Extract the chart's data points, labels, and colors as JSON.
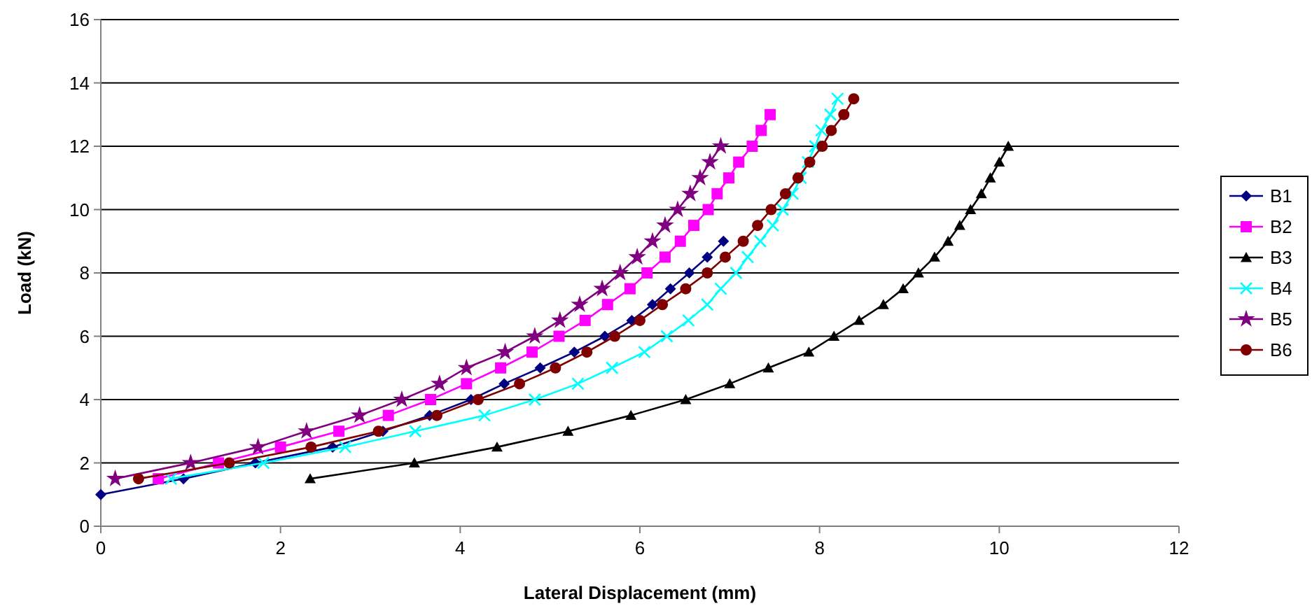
{
  "chart_data": {
    "type": "line",
    "xlabel": "Lateral Displacement (mm)",
    "ylabel": "Load (kN)",
    "xlim": [
      0,
      12
    ],
    "xticks": [
      0,
      2,
      4,
      6,
      8,
      10,
      12
    ],
    "ylim": [
      0,
      16
    ],
    "yticks": [
      0,
      2,
      4,
      6,
      8,
      10,
      12,
      14,
      16
    ],
    "grid": "y",
    "legend": "right",
    "series": [
      {
        "name": "B1",
        "color": "#000080",
        "marker": "diamond",
        "x": [
          0,
          0.92,
          1.72,
          2.58,
          3.14,
          3.66,
          4.12,
          4.49,
          4.89,
          5.27,
          5.61,
          5.91,
          6.14,
          6.34,
          6.55,
          6.75,
          6.93
        ],
        "values": [
          1,
          1.5,
          2,
          2.5,
          3,
          3.5,
          4,
          4.5,
          5,
          5.5,
          6,
          6.5,
          7,
          7.5,
          8,
          8.5,
          9
        ]
      },
      {
        "name": "B2",
        "color": "#ff00ff",
        "marker": "square",
        "x": [
          0.64,
          1.31,
          2.0,
          2.65,
          3.2,
          3.67,
          4.07,
          4.45,
          4.8,
          5.1,
          5.39,
          5.64,
          5.89,
          6.08,
          6.28,
          6.45,
          6.6,
          6.76,
          6.86,
          6.99,
          7.1,
          7.25,
          7.35,
          7.45
        ],
        "values": [
          1.5,
          2,
          2.5,
          3,
          3.5,
          4,
          4.5,
          5,
          5.5,
          6,
          6.5,
          7,
          7.5,
          8,
          8.5,
          9,
          9.5,
          10,
          10.5,
          11,
          11.5,
          12,
          12.5,
          13
        ]
      },
      {
        "name": "B3",
        "color": "#000000",
        "marker": "triangle",
        "x": [
          2.33,
          3.49,
          4.41,
          5.2,
          5.9,
          6.51,
          7.0,
          7.43,
          7.88,
          8.16,
          8.44,
          8.71,
          8.93,
          9.1,
          9.28,
          9.43,
          9.56,
          9.68,
          9.8,
          9.9,
          10.0,
          10.1
        ],
        "values": [
          1.5,
          2,
          2.5,
          3,
          3.5,
          4,
          4.5,
          5,
          5.5,
          6,
          6.5,
          7,
          7.5,
          8,
          8.5,
          9,
          9.5,
          10,
          10.5,
          11,
          11.5,
          12
        ]
      },
      {
        "name": "B4",
        "color": "#00ffff",
        "marker": "cross",
        "x": [
          0.78,
          1.81,
          2.72,
          3.5,
          4.27,
          4.83,
          5.31,
          5.69,
          6.05,
          6.3,
          6.54,
          6.75,
          6.9,
          7.07,
          7.2,
          7.34,
          7.48,
          7.59,
          7.7,
          7.79,
          7.87,
          7.95,
          8.02,
          8.12,
          8.2
        ],
        "values": [
          1.5,
          2,
          2.5,
          3,
          3.5,
          4,
          4.5,
          5,
          5.5,
          6,
          6.5,
          7,
          7.5,
          8,
          8.5,
          9,
          9.5,
          10,
          10.5,
          11,
          11.5,
          12,
          12.5,
          13,
          13.5
        ]
      },
      {
        "name": "B5",
        "color": "#800080",
        "marker": "star",
        "x": [
          0.16,
          1.0,
          1.75,
          2.29,
          2.88,
          3.35,
          3.77,
          4.07,
          4.5,
          4.83,
          5.11,
          5.33,
          5.58,
          5.78,
          5.97,
          6.14,
          6.28,
          6.42,
          6.56,
          6.67,
          6.78,
          6.9
        ],
        "values": [
          1.5,
          2,
          2.5,
          3,
          3.5,
          4,
          4.5,
          5,
          5.5,
          6,
          6.5,
          7,
          7.5,
          8,
          8.5,
          9,
          9.5,
          10,
          10.5,
          11,
          11.5,
          12
        ]
      },
      {
        "name": "B6",
        "color": "#800000",
        "marker": "circle",
        "x": [
          0.42,
          1.43,
          2.34,
          3.09,
          3.74,
          4.2,
          4.66,
          5.06,
          5.41,
          5.72,
          6.0,
          6.25,
          6.51,
          6.75,
          6.95,
          7.15,
          7.31,
          7.46,
          7.62,
          7.76,
          7.89,
          8.03,
          8.13,
          8.27,
          8.38
        ],
        "values": [
          1.5,
          2,
          2.5,
          3,
          3.5,
          4,
          4.5,
          5,
          5.5,
          6,
          6.5,
          7,
          7.5,
          8,
          8.5,
          9,
          9.5,
          10,
          10.5,
          11,
          11.5,
          12,
          12.5,
          13,
          13.5
        ]
      }
    ]
  }
}
